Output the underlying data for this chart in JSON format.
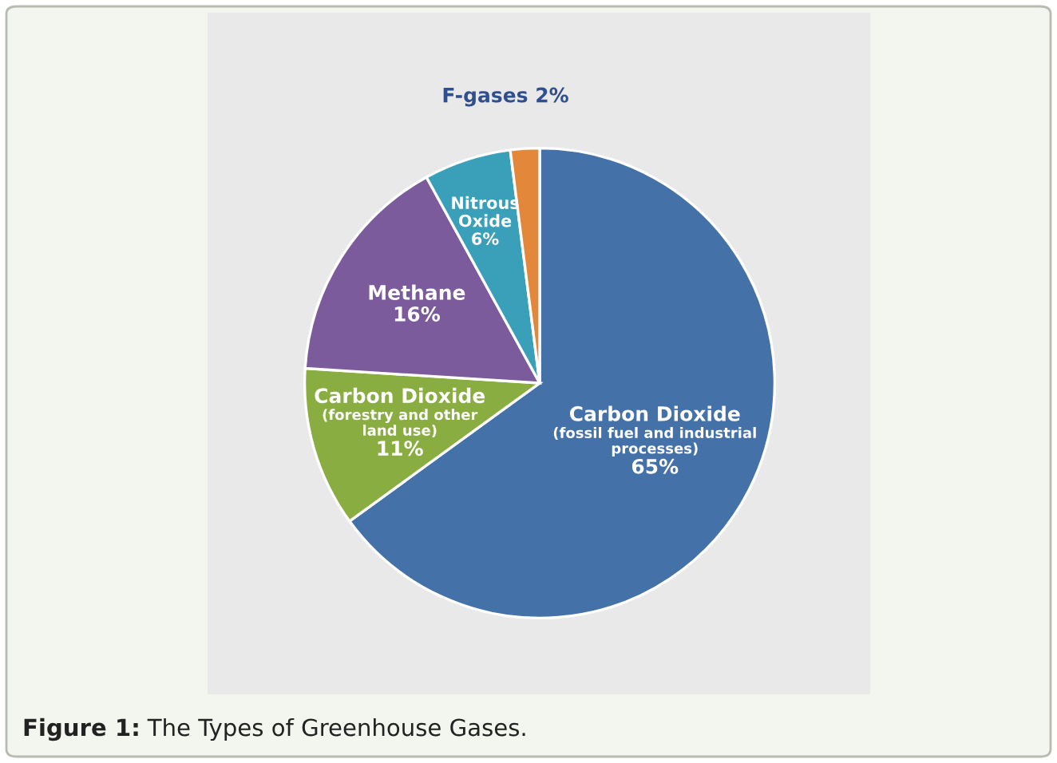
{
  "chart_data": {
    "type": "pie",
    "categories": [
      "Carbon Dioxide\n(fossil fuel and industrial\nprocesses)",
      "Carbon Dioxide\n(forestry and other\nland use)",
      "Methane",
      "Nitrous\nOxide",
      "F-gases"
    ],
    "values": [
      65,
      11,
      16,
      6,
      2
    ],
    "value_labels": [
      "65%",
      "11%",
      "16%",
      "6%",
      "2%"
    ],
    "colors": [
      "#4471a8",
      "#8aad41",
      "#7b5b9b",
      "#3a9fb9",
      "#e3883a"
    ],
    "annotations": [
      "Figure 1:",
      "The Types of Greenhouse Gases."
    ]
  }
}
